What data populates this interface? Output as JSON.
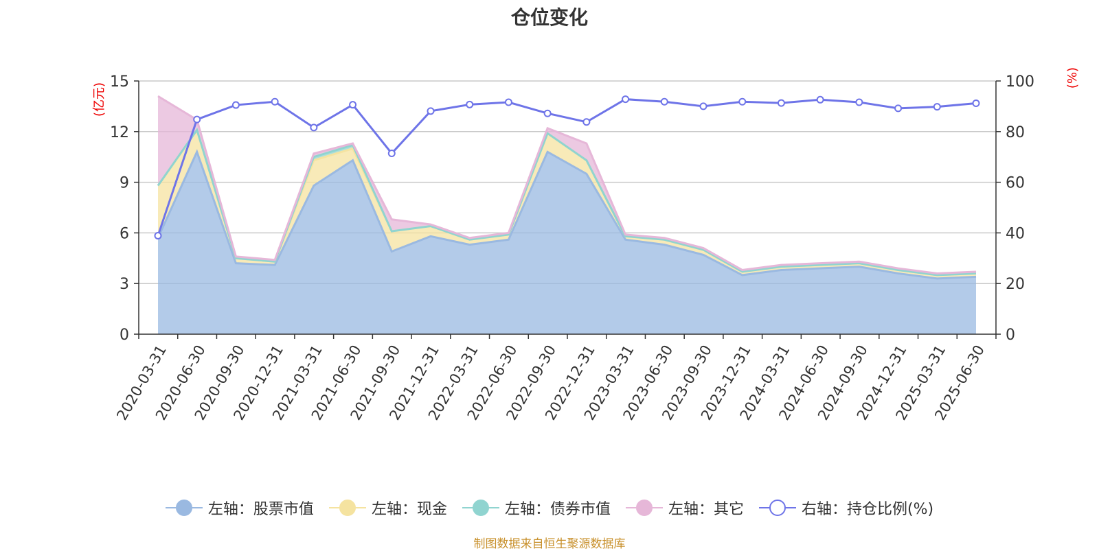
{
  "title": "仓位变化",
  "source": "制图数据来自恒生聚源数据库",
  "chart_data": {
    "type": "area",
    "categories": [
      "2020-03-31",
      "2020-06-30",
      "2020-09-30",
      "2020-12-31",
      "2021-03-31",
      "2021-06-30",
      "2021-09-30",
      "2021-12-31",
      "2022-03-31",
      "2022-06-30",
      "2022-09-30",
      "2022-12-31",
      "2023-03-31",
      "2023-06-30",
      "2023-09-30",
      "2023-12-31",
      "2024-03-31",
      "2024-06-30",
      "2024-09-30",
      "2024-12-31",
      "2025-03-31",
      "2025-06-30"
    ],
    "left_axis": {
      "unit": "(亿元)",
      "ticks": [
        "0",
        "3",
        "6",
        "9",
        "12",
        "15"
      ],
      "min": 0,
      "max": 15
    },
    "right_axis": {
      "unit": "(%)",
      "ticks": [
        "0",
        "20",
        "40",
        "60",
        "80",
        "100"
      ],
      "min": 0,
      "max": 100
    },
    "stacked": true,
    "grid": true,
    "legend_position": "bottom",
    "series": [
      {
        "name": "左轴：股票市值",
        "axis": "left",
        "color": "#9ab9e1",
        "values": [
          5.7,
          10.8,
          4.2,
          4.1,
          8.8,
          10.3,
          4.9,
          5.8,
          5.3,
          5.6,
          10.8,
          9.5,
          5.6,
          5.3,
          4.7,
          3.5,
          3.8,
          3.9,
          4.0,
          3.6,
          3.3,
          3.4
        ]
      },
      {
        "name": "左轴：现金",
        "axis": "left",
        "color": "#f5e3a0",
        "values": [
          3.1,
          1.3,
          0.3,
          0.2,
          1.5,
          0.7,
          1.2,
          0.6,
          0.3,
          0.3,
          1.1,
          0.8,
          0.2,
          0.3,
          0.3,
          0.2,
          0.2,
          0.2,
          0.2,
          0.2,
          0.2,
          0.2
        ]
      },
      {
        "name": "左轴：债券市值",
        "axis": "left",
        "color": "#90d4d0",
        "values": [
          0,
          0,
          0,
          0,
          0.2,
          0.2,
          0,
          0,
          0,
          0,
          0,
          0,
          0,
          0,
          0,
          0,
          0,
          0,
          0,
          0,
          0,
          0
        ]
      },
      {
        "name": "左轴：其它",
        "axis": "left",
        "color": "#e6b7d8",
        "values": [
          5.3,
          0.6,
          0.1,
          0.1,
          0.2,
          0.1,
          0.7,
          0.1,
          0.1,
          0.1,
          0.3,
          1.0,
          0.1,
          0.1,
          0.1,
          0.1,
          0.1,
          0.1,
          0.1,
          0.1,
          0.1,
          0.1
        ]
      },
      {
        "name": "右轴：持仓比例(%)",
        "axis": "right",
        "type": "line",
        "color": "#6e74e8",
        "values": [
          38.9,
          84.8,
          90.5,
          91.8,
          81.6,
          90.6,
          71.4,
          88.1,
          90.7,
          91.6,
          87.2,
          83.8,
          92.8,
          91.8,
          90.0,
          91.8,
          91.3,
          92.6,
          91.6,
          89.2,
          89.8,
          91.2
        ]
      }
    ]
  }
}
